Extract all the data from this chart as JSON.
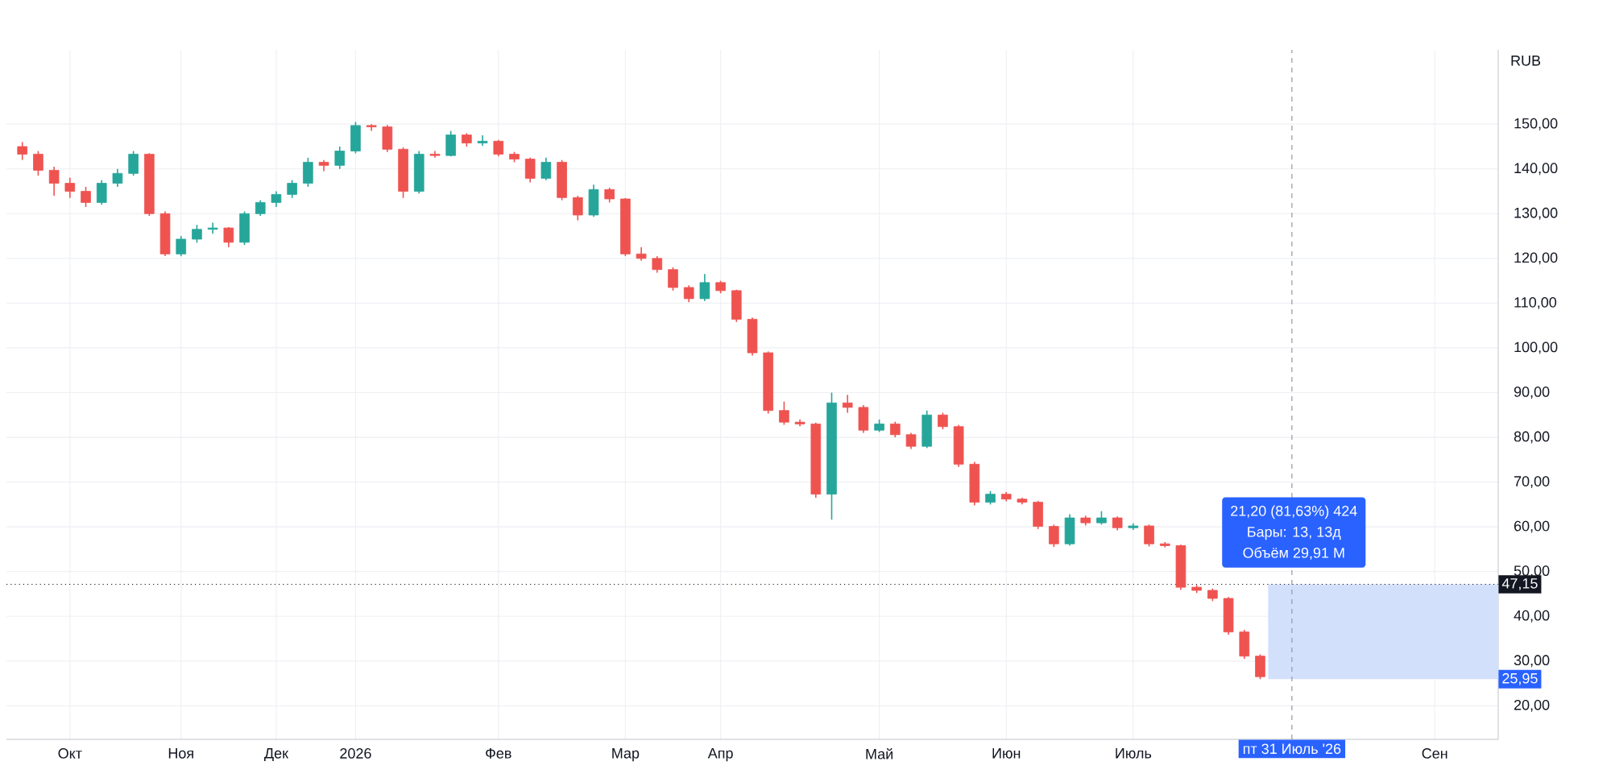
{
  "chart_data": {
    "type": "candlestick",
    "ylabel": "RUB",
    "categories": [
      null,
      null,
      null,
      "Окт",
      null,
      null,
      null,
      null,
      null,
      null,
      "Ноя",
      null,
      null,
      null,
      null,
      null,
      "Дек",
      null,
      null,
      null,
      null,
      "2026",
      null,
      null,
      null,
      null,
      null,
      null,
      null,
      null,
      "Фев",
      null,
      null,
      null,
      null,
      null,
      null,
      null,
      "Мар",
      null,
      null,
      null,
      null,
      null,
      "Апр",
      null,
      null,
      null,
      null,
      null,
      null,
      null,
      null,
      null,
      "Май",
      null,
      null,
      null,
      null,
      null,
      null,
      null,
      "Июн",
      null,
      null,
      null,
      null,
      null,
      null,
      null,
      "Июль",
      null,
      null,
      null,
      null,
      null,
      null,
      null,
      null,
      null,
      "пт 31 Июль '26",
      null,
      null,
      null,
      null,
      null,
      null,
      null,
      null,
      "Сен",
      null,
      null,
      null
    ],
    "ohlc": [
      [
        145,
        146,
        142,
        143.3
      ],
      [
        143.3,
        144,
        138.5,
        139.7
      ],
      [
        139.7,
        140.5,
        134,
        136.8
      ],
      [
        136.8,
        138,
        133.5,
        135
      ],
      [
        135,
        136,
        131.5,
        132.5
      ],
      [
        132.5,
        137.5,
        132,
        136.8
      ],
      [
        136.8,
        140,
        136,
        139
      ],
      [
        139,
        144,
        138.5,
        143.3
      ],
      [
        143.3,
        143.5,
        129.5,
        130
      ],
      [
        130,
        130.5,
        120.5,
        121
      ],
      [
        121,
        125,
        120.5,
        124.3
      ],
      [
        124.3,
        127.5,
        123.5,
        126.5
      ],
      [
        126.5,
        128,
        125.5,
        126.8
      ],
      [
        126.8,
        127,
        122.5,
        123.6
      ],
      [
        123.6,
        130.5,
        123,
        130
      ],
      [
        130,
        133,
        129.5,
        132.5
      ],
      [
        132.5,
        135,
        131.5,
        134.3
      ],
      [
        134.3,
        137.5,
        133.5,
        136.8
      ],
      [
        136.8,
        142.5,
        136,
        141.5
      ],
      [
        141.5,
        142,
        139.5,
        140.8
      ],
      [
        140.8,
        145,
        140,
        144
      ],
      [
        144,
        150.5,
        143.5,
        149.7
      ],
      [
        149.7,
        150,
        148.5,
        149.4
      ],
      [
        149.4,
        149.8,
        143.8,
        144.4
      ],
      [
        144.4,
        144.8,
        133.5,
        135
      ],
      [
        135,
        144,
        134.5,
        143.3
      ],
      [
        143.3,
        144,
        142.5,
        143
      ],
      [
        143,
        148.5,
        142.8,
        147.6
      ],
      [
        147.6,
        148,
        145,
        145.8
      ],
      [
        145.8,
        147.5,
        145.2,
        146.2
      ],
      [
        146.2,
        146.5,
        142.8,
        143.3
      ],
      [
        143.3,
        143.8,
        141.5,
        142.2
      ],
      [
        142.2,
        142.5,
        137,
        137.9
      ],
      [
        137.9,
        142.5,
        137.5,
        141.5
      ],
      [
        141.5,
        142,
        133,
        133.6
      ],
      [
        133.6,
        134,
        128.5,
        129.7
      ],
      [
        129.7,
        136.5,
        129.3,
        135.4
      ],
      [
        135.4,
        135.8,
        132.5,
        133.3
      ],
      [
        133.3,
        133.5,
        120.5,
        121
      ],
      [
        121,
        122.5,
        119.5,
        120
      ],
      [
        120,
        120.5,
        116.8,
        117.5
      ],
      [
        117.5,
        118,
        112.8,
        113.5
      ],
      [
        113.5,
        114,
        110.2,
        111
      ],
      [
        111,
        116.5,
        110.5,
        114.6
      ],
      [
        114.6,
        115,
        112.2,
        112.8
      ],
      [
        112.8,
        113,
        105.8,
        106.4
      ],
      [
        106.4,
        106.8,
        98.3,
        98.9
      ],
      [
        98.9,
        99.2,
        85.3,
        86
      ],
      [
        86,
        88,
        82.8,
        83.4
      ],
      [
        83.4,
        84,
        82.5,
        83
      ],
      [
        83,
        83.3,
        66.5,
        67.3
      ],
      [
        67.3,
        90,
        61.6,
        87.7
      ],
      [
        87.7,
        89.5,
        85.5,
        86.7
      ],
      [
        86.7,
        87.2,
        81,
        81.6
      ],
      [
        81.6,
        84,
        81.2,
        83
      ],
      [
        83,
        83.5,
        80,
        80.6
      ],
      [
        80.6,
        81,
        77.4,
        78
      ],
      [
        78,
        86,
        77.6,
        85
      ],
      [
        85,
        85.5,
        81.8,
        82.4
      ],
      [
        82.4,
        82.8,
        73.4,
        74
      ],
      [
        74,
        74.5,
        64.8,
        65.5
      ],
      [
        65.5,
        68,
        65,
        67.3
      ],
      [
        67.3,
        67.8,
        65.7,
        66.2
      ],
      [
        66.2,
        66.5,
        65,
        65.5
      ],
      [
        65.5,
        65.8,
        59.5,
        60.1
      ],
      [
        60.1,
        60.5,
        55.5,
        56.2
      ],
      [
        56.2,
        62.8,
        55.8,
        62
      ],
      [
        62,
        62.5,
        60.3,
        60.9
      ],
      [
        60.9,
        63.5,
        60.5,
        62
      ],
      [
        62,
        62.3,
        59.2,
        59.8
      ],
      [
        59.8,
        60.8,
        59.3,
        60.2
      ],
      [
        60.2,
        60.5,
        55.6,
        56.2
      ],
      [
        56.2,
        56.6,
        55.4,
        55.8
      ],
      [
        55.8,
        56,
        45.9,
        46.5
      ],
      [
        46.5,
        47,
        45.2,
        45.8
      ],
      [
        45.8,
        46.2,
        43.4,
        44
      ],
      [
        44,
        44.3,
        35.9,
        36.5
      ],
      [
        36.5,
        37,
        30.5,
        31.1
      ],
      [
        31.1,
        31.5,
        25.95,
        26.5
      ],
      null,
      null,
      null,
      null,
      null,
      null,
      null,
      null,
      null,
      null,
      null,
      null,
      null,
      null
    ],
    "colors": [
      "#ef5350",
      "#ef5350",
      "#ef5350",
      "#ef5350",
      "#ef5350",
      "#26a69a",
      "#26a69a",
      "#26a69a",
      "#ef5350",
      "#ef5350",
      "#26a69a",
      "#26a69a",
      "#26a69a",
      "#ef5350",
      "#26a69a",
      "#26a69a",
      "#26a69a",
      "#26a69a",
      "#26a69a",
      "#ef5350",
      "#26a69a",
      "#26a69a",
      "#ef5350",
      "#ef5350",
      "#ef5350",
      "#26a69a",
      "#ef5350",
      "#26a69a",
      "#ef5350",
      "#26a69a",
      "#ef5350",
      "#ef5350",
      "#ef5350",
      "#26a69a",
      "#ef5350",
      "#ef5350",
      "#26a69a",
      "#ef5350",
      "#ef5350",
      "#ef5350",
      "#ef5350",
      "#ef5350",
      "#ef5350",
      "#26a69a",
      "#ef5350",
      "#ef5350",
      "#ef5350",
      "#ef5350",
      "#ef5350",
      "#ef5350",
      "#ef5350",
      "#26a69a",
      "#ef5350",
      "#ef5350",
      "#26a69a",
      "#ef5350",
      "#ef5350",
      "#26a69a",
      "#ef5350",
      "#ef5350",
      "#ef5350",
      "#26a69a",
      "#ef5350",
      "#ef5350",
      "#ef5350",
      "#ef5350",
      "#26a69a",
      "#ef5350",
      "#26a69a",
      "#ef5350",
      "#26a69a",
      "#ef5350",
      "#ef5350",
      "#ef5350",
      "#ef5350",
      "#ef5350",
      "#ef5350",
      "#ef5350",
      "#ef5350",
      null,
      null,
      null,
      null,
      null,
      null,
      null,
      null,
      null,
      null,
      null,
      null,
      null,
      null
    ],
    "ylim": [
      12.5,
      166.6
    ],
    "yticks": [
      {
        "value": 20,
        "label": "20,00"
      },
      {
        "value": 30,
        "label": "30,00"
      },
      {
        "value": 40,
        "label": "40,00"
      },
      {
        "value": 50,
        "label": "50,00"
      },
      {
        "value": 60,
        "label": "60,00"
      },
      {
        "value": 70,
        "label": "70,00"
      },
      {
        "value": 80,
        "label": "80,00"
      },
      {
        "value": 90,
        "label": "90,00"
      },
      {
        "value": 100,
        "label": "100,00"
      },
      {
        "value": 110,
        "label": "110,00"
      },
      {
        "value": 120,
        "label": "120,00"
      },
      {
        "value": 130,
        "label": "130,00"
      },
      {
        "value": 140,
        "label": "140,00"
      },
      {
        "value": 150,
        "label": "150,00"
      }
    ],
    "grid": true,
    "ref_lines": [
      {
        "axis": "y",
        "value": 47.15,
        "label": "47,15",
        "color": "#131722",
        "line_style": "dotted"
      },
      {
        "axis": "x",
        "value": "пт 31 Июль '26",
        "color": "#9598a1",
        "line_style": "dashed"
      }
    ],
    "bands": [
      {
        "axis": "y",
        "from": 25.95,
        "to": 47.15,
        "label": "25,95",
        "color": "#d3e0fc"
      }
    ],
    "annotations": [
      "21,20 (81,63%) 424",
      "Бары: 13, 13д",
      "Объём 29,91 M"
    ]
  }
}
